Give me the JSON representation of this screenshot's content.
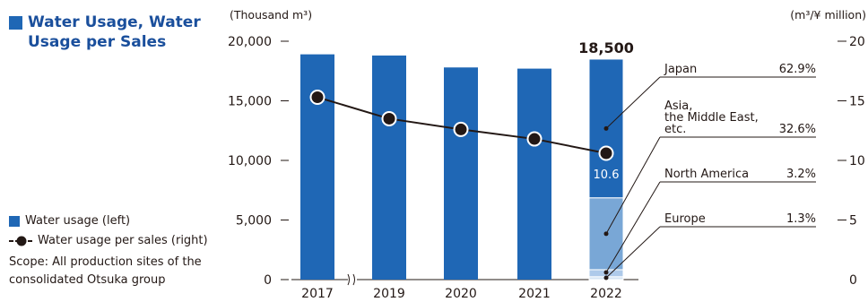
{
  "title": "Water Usage, Water Usage per Sales",
  "legend": {
    "bar_label": "Water usage (left)",
    "line_label": "Water usage per sales (right)"
  },
  "scope": "Scope: All production sites of the consolidated Otsuka group",
  "colors": {
    "bar": "#1f67b5",
    "japan": "#1f67b5",
    "asia": "#79a7d6",
    "north_america": "#aecaea",
    "europe": "#d5e4f4",
    "line": "#231815",
    "accent_title": "#1a4f9c"
  },
  "chart_data": {
    "type": "bar",
    "categories": [
      "2017",
      "2019",
      "2020",
      "2021",
      "2022"
    ],
    "axis_break_between": [
      "2017",
      "2019"
    ],
    "left_axis": {
      "label": "(Thousand m³)",
      "ticks": [
        "0",
        "5,000",
        "10,000",
        "15,000",
        "20,000"
      ],
      "ylim": [
        0,
        20000
      ]
    },
    "right_axis": {
      "label": "(m³/¥ million)",
      "ticks": [
        "0",
        "5",
        "10",
        "15",
        "20"
      ],
      "ylim": [
        0,
        20
      ]
    },
    "series": [
      {
        "name": "Water usage (left)",
        "values": [
          18900,
          18800,
          17800,
          17700,
          18500
        ]
      },
      {
        "name": "Water usage per sales (right)",
        "values": [
          15.3,
          13.5,
          12.6,
          11.8,
          10.6
        ]
      }
    ],
    "total_label": "18,500",
    "line_value_label": "10.6",
    "breakdown_2022": [
      {
        "region": "Japan",
        "share": "62.9%",
        "value": 62.9
      },
      {
        "region": "Asia,\nthe Middle East,\netc.",
        "share": "32.6%",
        "value": 32.6
      },
      {
        "region": "North America",
        "share": "3.2%",
        "value": 3.2
      },
      {
        "region": "Europe",
        "share": "1.3%",
        "value": 1.3
      }
    ],
    "grid": false
  }
}
